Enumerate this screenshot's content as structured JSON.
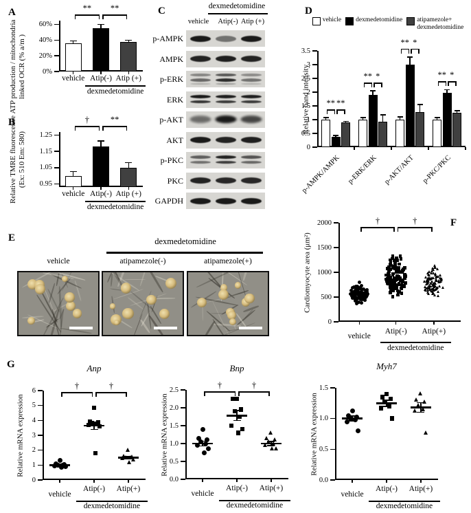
{
  "figure_type": "multi-panel scientific figure",
  "panels": {
    "A": {
      "letter": "A"
    },
    "B": {
      "letter": "B"
    },
    "C": {
      "letter": "C",
      "treatment_header": "dexmedetomidine",
      "columns": [
        "vehicle",
        "Atip(-)",
        "Atip (+)"
      ],
      "rows": [
        {
          "label": "p-AMPK",
          "style": "single",
          "intensities": [
            0.95,
            0.5,
            0.95
          ]
        },
        {
          "label": "AMPK",
          "style": "single",
          "intensities": [
            0.9,
            0.92,
            0.9
          ]
        },
        {
          "label": "p-ERK",
          "style": "noisy",
          "intensities": [
            0.55,
            0.85,
            0.5
          ]
        },
        {
          "label": "ERK",
          "style": "doublet",
          "intensities": [
            0.95,
            0.92,
            0.92
          ]
        },
        {
          "label": "p-AKT",
          "style": "smear",
          "intensities": [
            0.45,
            0.92,
            0.65
          ]
        },
        {
          "label": "AKT",
          "style": "single",
          "intensities": [
            0.95,
            0.9,
            0.92
          ]
        },
        {
          "label": "p-PKC",
          "style": "doublet",
          "intensities": [
            0.6,
            0.9,
            0.65
          ]
        },
        {
          "label": "PKC",
          "style": "single",
          "intensities": [
            0.9,
            0.88,
            0.88
          ]
        },
        {
          "label": "GAPDH",
          "style": "single",
          "intensities": [
            0.95,
            0.95,
            0.95
          ]
        }
      ]
    },
    "D": {
      "letter": "D",
      "legend": [
        {
          "label": "vehicle",
          "color": "#ffffff"
        },
        {
          "label": "dexmedetomidine",
          "color": "#000000"
        },
        {
          "label": "atipamezole+dexmedetomidine",
          "lines": [
            "atipamezole+",
            "dexmedetomidine"
          ],
          "color": "#404040"
        }
      ]
    },
    "E": {
      "letter": "E",
      "treatment_header": "dexmedetomidine",
      "image_labels": [
        "vehicle",
        "atipamezole(-)",
        "atipamezole(+)"
      ],
      "scale_bar": true
    },
    "F": {
      "letter": "F"
    },
    "G": {
      "letter": "G"
    }
  },
  "chart_data": [
    {
      "panel": "A",
      "type": "bar",
      "ylabel": "ATP production / mitochondria\nlinked OCR (% a/m )",
      "categories": [
        "vehicle",
        "Atip(-)",
        "Atip (+)"
      ],
      "values": [
        36,
        55,
        38
      ],
      "errors": [
        3,
        5,
        2
      ],
      "bar_colors": [
        "#ffffff",
        "#000000",
        "#404040"
      ],
      "yticks": [
        0,
        20,
        40,
        60
      ],
      "ytick_labels": [
        "0%",
        "20%",
        "40%",
        "60%"
      ],
      "ylim": [
        0,
        65
      ],
      "significance": [
        {
          "pair": [
            0,
            1
          ],
          "label": "**"
        },
        {
          "pair": [
            1,
            2
          ],
          "label": "**"
        }
      ],
      "x_group_label": "dexmedetomidine"
    },
    {
      "panel": "B",
      "type": "bar",
      "ylabel": "Relative TMRE fluorescence\n(Ex: 510 Em: 580)",
      "categories": [
        "vehicle",
        "Atip(-)",
        "Atip (+)"
      ],
      "values": [
        1.0,
        1.18,
        1.05
      ],
      "errors": [
        0.025,
        0.035,
        0.03
      ],
      "bar_colors": [
        "#ffffff",
        "#000000",
        "#404040"
      ],
      "yticks": [
        0.95,
        1.05,
        1.15,
        1.25
      ],
      "ytick_labels": [
        "0.95",
        "1.05",
        "1.15",
        "1.25"
      ],
      "ylim": [
        0.93,
        1.27
      ],
      "significance": [
        {
          "pair": [
            0,
            1
          ],
          "label": "†"
        },
        {
          "pair": [
            1,
            2
          ],
          "label": "**"
        }
      ],
      "x_group_label": "dexmedetomidine"
    },
    {
      "panel": "D",
      "type": "grouped_bar",
      "ylabel": "Relative band intensity",
      "categories": [
        "p-AMPK/AMPK",
        "p-ERK/ERK",
        "p-AKT/AKT",
        "p-PKC/PKC"
      ],
      "series": [
        {
          "name": "vehicle",
          "color": "#ffffff",
          "values": [
            1.0,
            1.0,
            1.0,
            1.0
          ],
          "errors": [
            0.07,
            0.08,
            0.1,
            0.08
          ]
        },
        {
          "name": "dexmedetomidine",
          "color": "#000000",
          "values": [
            0.38,
            1.9,
            3.0,
            1.97
          ],
          "errors": [
            0.04,
            0.15,
            0.28,
            0.12
          ]
        },
        {
          "name": "atipamezole+dexmedetomidine",
          "color": "#404040",
          "values": [
            0.9,
            0.93,
            1.28,
            1.25
          ],
          "errors": [
            0.04,
            0.25,
            0.27,
            0.08
          ]
        }
      ],
      "yticks": [
        0,
        0.5,
        1,
        1.5,
        2,
        2.5,
        3,
        3.5
      ],
      "ytick_labels": [
        "0",
        "0.5",
        "1",
        "1.5",
        "2",
        "2.5",
        "3",
        "3.5"
      ],
      "ylim": [
        0,
        3.5
      ],
      "significance": [
        [
          "**",
          "**"
        ],
        [
          "**",
          "*"
        ],
        [
          "**",
          "*"
        ],
        [
          "**",
          "*"
        ]
      ]
    },
    {
      "panel": "F",
      "type": "beeswarm",
      "ylabel": "Cardiomyocyte area (μm²)",
      "categories": [
        "vehicle",
        "Atip(-)",
        "Atip(+)"
      ],
      "markers": [
        "circle",
        "square",
        "triangle"
      ],
      "distributions": [
        {
          "n": 90,
          "min": 330,
          "max": 870,
          "center": 560
        },
        {
          "n": 110,
          "min": 390,
          "max": 1510,
          "center": 900
        },
        {
          "n": 95,
          "min": 380,
          "max": 1260,
          "center": 730
        }
      ],
      "points_are_approximate": true,
      "yticks": [
        0,
        500,
        1000,
        1500,
        2000
      ],
      "ytick_labels": [
        "0",
        "500",
        "1000",
        "1500",
        "2000"
      ],
      "ylim": [
        0,
        2000
      ],
      "significance": [
        {
          "pair": [
            0,
            1
          ],
          "label": "†"
        },
        {
          "pair": [
            1,
            2
          ],
          "label": "†"
        }
      ],
      "x_group_label": "dexmedetomidine"
    },
    {
      "panel": "G",
      "title": "Anp",
      "type": "scatter",
      "ylabel": "Relative mRNA expression",
      "categories": [
        "vehicle",
        "Atip(-)",
        "Atip(+)"
      ],
      "markers": [
        "circle",
        "square",
        "triangle"
      ],
      "points": [
        [
          1.3,
          1.1,
          1.05,
          1.0,
          1.0,
          0.95,
          0.9,
          0.85
        ],
        [
          4.85,
          3.9,
          3.85,
          3.8,
          3.75,
          3.7,
          3.6,
          1.8
        ],
        [
          2.0,
          1.6,
          1.55,
          1.5,
          1.5,
          1.45,
          1.35,
          1.2
        ]
      ],
      "means": [
        1.0,
        3.65,
        1.5
      ],
      "sems": [
        0.06,
        0.25,
        0.09
      ],
      "yticks": [
        0,
        1,
        2,
        3,
        4,
        5,
        6
      ],
      "ytick_labels": [
        "0",
        "1",
        "2",
        "3",
        "4",
        "5",
        "6"
      ],
      "ylim": [
        0,
        6
      ],
      "significance": [
        {
          "pair": [
            0,
            1
          ],
          "label": "†"
        },
        {
          "pair": [
            1,
            2
          ],
          "label": "†"
        }
      ],
      "x_group_label": "dexmedetomidine"
    },
    {
      "panel": "G",
      "title": "Bnp",
      "type": "scatter",
      "ylabel": "Relative mRNA expression",
      "categories": [
        "vehicle",
        "Atip(-)",
        "Atip(+)"
      ],
      "markers": [
        "circle",
        "square",
        "triangle"
      ],
      "points": [
        [
          1.4,
          1.15,
          1.1,
          1.05,
          1.0,
          0.95,
          0.85,
          0.75
        ],
        [
          2.25,
          2.25,
          1.95,
          1.9,
          1.75,
          1.5,
          1.4,
          1.3
        ],
        [
          1.3,
          1.15,
          1.1,
          1.05,
          1.0,
          0.95,
          0.85,
          0.85
        ]
      ],
      "means": [
        1.0,
        1.78,
        1.0
      ],
      "sems": [
        0.07,
        0.14,
        0.06
      ],
      "yticks": [
        0,
        0.5,
        1,
        1.5,
        2,
        2.5
      ],
      "ytick_labels": [
        "0.0",
        "0.5",
        "1.0",
        "1.5",
        "2.0",
        "2.5"
      ],
      "ylim": [
        0,
        2.5
      ],
      "significance": [
        {
          "pair": [
            0,
            1
          ],
          "label": "†"
        },
        {
          "pair": [
            1,
            2
          ],
          "label": "†"
        }
      ],
      "x_group_label": "dexmedetomidine"
    },
    {
      "panel": "G",
      "title": "Myh7",
      "type": "scatter",
      "ylabel": "Relative mRNA expression",
      "categories": [
        "vehicle",
        "Atip(-)",
        "Atip(+)"
      ],
      "markers": [
        "circle",
        "square",
        "triangle"
      ],
      "points": [
        [
          1.12,
          1.05,
          1.02,
          1.0,
          0.98,
          0.95,
          0.8
        ],
        [
          1.4,
          1.35,
          1.32,
          1.27,
          1.2,
          1.17,
          1.0
        ],
        [
          1.4,
          1.3,
          1.27,
          1.22,
          1.15,
          1.12,
          0.77
        ]
      ],
      "means": [
        1.0,
        1.25,
        1.18
      ],
      "sems": [
        0.04,
        0.05,
        0.08
      ],
      "yticks": [
        0,
        0.5,
        1,
        1.5
      ],
      "ytick_labels": [
        "0.0",
        "0.5",
        "1.0",
        "1.5"
      ],
      "ylim": [
        0,
        1.5
      ],
      "significance": [],
      "x_group_label": "dexmedetomidine"
    }
  ]
}
